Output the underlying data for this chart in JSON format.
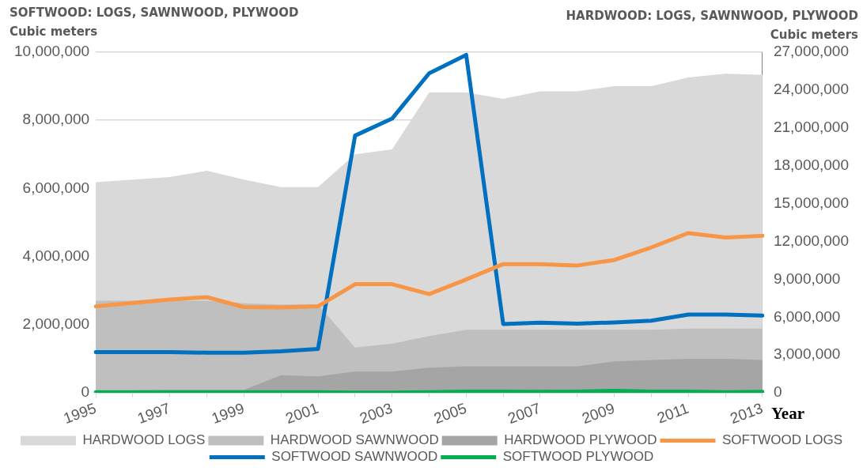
{
  "chart_data": {
    "type": "line",
    "ylabel": "SOFTWOOD: LOGS, SAWNWOOD, PLYWOOD\nCubic meters",
    "y2label": "HARDWOOD: LOGS, SAWNWOOD, PLYWOOD\nCubic meters",
    "xlabel": "Year",
    "categories": [
      "1995",
      null,
      "1997",
      null,
      "1999",
      null,
      "2001",
      null,
      "2003",
      null,
      "2005",
      null,
      "2007",
      null,
      "2009",
      null,
      "2011",
      null,
      "2013"
    ],
    "ylim": [
      0,
      10000000
    ],
    "yticks": [
      {
        "value": 0,
        "label": "0"
      },
      {
        "value": 2000000,
        "label": "2,000,000"
      },
      {
        "value": 4000000,
        "label": "4,000,000"
      },
      {
        "value": 6000000,
        "label": "6,000,000"
      },
      {
        "value": 8000000,
        "label": "8,000,000"
      },
      {
        "value": 10000000,
        "label": "10,000,000"
      }
    ],
    "y2lim": [
      0,
      27000000
    ],
    "y2ticks": [
      {
        "value": 0,
        "label": "0"
      },
      {
        "value": 3000000,
        "label": "3,000,000"
      },
      {
        "value": 6000000,
        "label": "6,000,000"
      },
      {
        "value": 9000000,
        "label": "9,000,000"
      },
      {
        "value": 12000000,
        "label": "12,000,000"
      },
      {
        "value": 15000000,
        "label": "15,000,000"
      },
      {
        "value": 18000000,
        "label": "18,000,000"
      },
      {
        "value": 21000000,
        "label": "21,000,000"
      },
      {
        "value": 24000000,
        "label": "24,000,000"
      },
      {
        "value": 27000000,
        "label": "27,000,000"
      }
    ],
    "grid": "y",
    "legend": "bottom",
    "marker": "none",
    "series": [
      {
        "name": "HARDWOOD LOGS",
        "type": "area",
        "axis": "y2",
        "color": "#d9d9d9",
        "values": [
          16700000,
          16900000,
          17100000,
          17600000,
          16900000,
          16300000,
          16300000,
          18900000,
          19300000,
          23800000,
          23800000,
          23300000,
          23900000,
          23900000,
          24300000,
          24300000,
          25000000,
          25300000,
          25200000
        ]
      },
      {
        "name": "HARDWOOD SAWNWOOD",
        "type": "area",
        "axis": "y2",
        "color": "#bfbfbf",
        "values": [
          7300000,
          7300000,
          7300000,
          7300000,
          7100000,
          7000000,
          7000000,
          3600000,
          3900000,
          4500000,
          5000000,
          5000000,
          5000000,
          5000000,
          5000000,
          5000000,
          5100000,
          5100000,
          5100000
        ]
      },
      {
        "name": "HARDWOOD PLYWOOD",
        "type": "area",
        "axis": "y2",
        "color": "#a5a5a5",
        "values": [
          200000,
          200000,
          250000,
          250000,
          250000,
          1400000,
          1300000,
          1700000,
          1700000,
          2000000,
          2100000,
          2100000,
          2100000,
          2100000,
          2500000,
          2600000,
          2700000,
          2700000,
          2600000
        ]
      },
      {
        "name": "SOFTWOOD LOGS",
        "type": "line",
        "color": "#f79646",
        "values": [
          2540000,
          2640000,
          2740000,
          2810000,
          2520000,
          2510000,
          2540000,
          3190000,
          3190000,
          2900000,
          3330000,
          3780000,
          3780000,
          3740000,
          3900000,
          4270000,
          4690000,
          4560000,
          4610000
        ]
      },
      {
        "name": "SOFTWOOD SAWNWOOD",
        "type": "line",
        "color": "#0070c0",
        "values": [
          1200000,
          1200000,
          1200000,
          1180000,
          1180000,
          1220000,
          1290000,
          7550000,
          8050000,
          9380000,
          9920000,
          2020000,
          2060000,
          2030000,
          2070000,
          2120000,
          2300000,
          2300000,
          2270000
        ]
      },
      {
        "name": "SOFTWOOD PLYWOOD",
        "type": "line",
        "color": "#00b050",
        "values": [
          20000,
          20000,
          20000,
          20000,
          20000,
          20000,
          20000,
          10000,
          10000,
          20000,
          40000,
          40000,
          30000,
          40000,
          60000,
          40000,
          40000,
          20000,
          30000
        ]
      }
    ]
  }
}
